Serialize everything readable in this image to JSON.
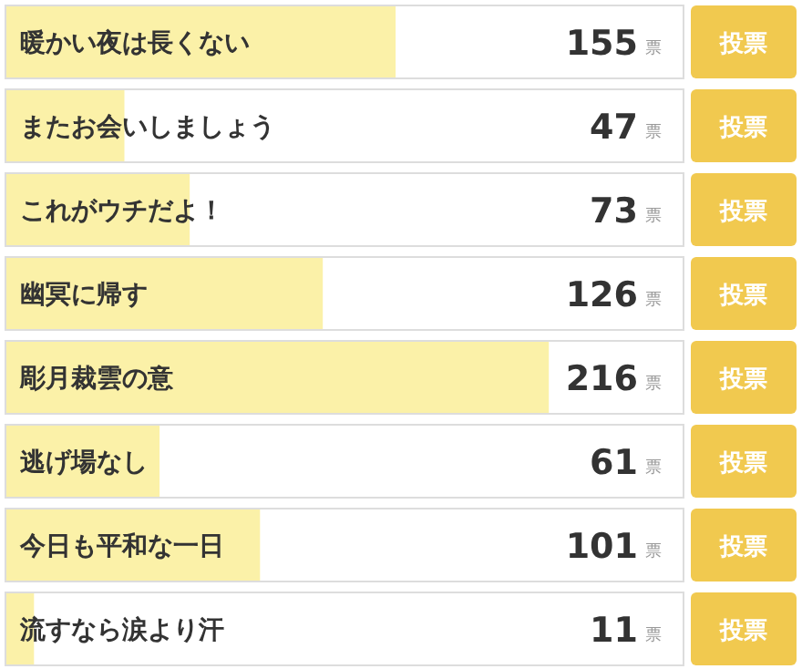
{
  "chart_data": {
    "type": "bar",
    "orientation": "horizontal",
    "categories": [
      "暖かい夜は長くない",
      "またお会いしましょう",
      "これがウチだよ！",
      "幽冥に帰す",
      "彫月裁雲の意",
      "逃げ場なし",
      "今日も平和な一日",
      "流すなら涙より汗"
    ],
    "values": [
      155,
      47,
      73,
      126,
      216,
      61,
      101,
      11
    ],
    "color": "#fbf1a8",
    "data_labels": true,
    "annotations": [
      "票",
      "投票"
    ]
  }
}
